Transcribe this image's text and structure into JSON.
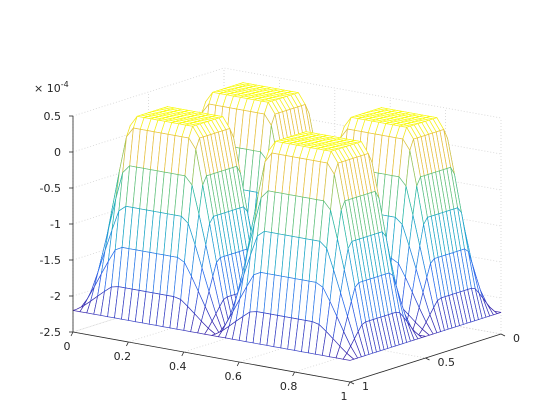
{
  "chart_data": {
    "type": "surface",
    "title": "",
    "xlabel": "",
    "ylabel": "",
    "zlabel": "",
    "xlim": [
      0,
      1
    ],
    "ylim": [
      0,
      1
    ],
    "zlim": [
      -2.5,
      0.5
    ],
    "z_exponent_label": "× 10",
    "z_exponent_power": "-4",
    "x_ticks": [
      {
        "value": 0,
        "label": "0"
      },
      {
        "value": 0.2,
        "label": "0.2"
      },
      {
        "value": 0.4,
        "label": "0.4"
      },
      {
        "value": 0.6,
        "label": "0.6"
      },
      {
        "value": 0.8,
        "label": "0.8"
      },
      {
        "value": 1,
        "label": "1"
      }
    ],
    "y_ticks": [
      {
        "value": 0,
        "label": "0"
      },
      {
        "value": 0.5,
        "label": "0.5"
      },
      {
        "value": 1,
        "label": "1"
      }
    ],
    "z_ticks": [
      {
        "value": 0.5,
        "label": "0.5"
      },
      {
        "value": 0,
        "label": "0"
      },
      {
        "value": -0.5,
        "label": "-0.5"
      },
      {
        "value": -1,
        "label": "-1"
      },
      {
        "value": -1.5,
        "label": "-1.5"
      },
      {
        "value": -2,
        "label": "-2"
      },
      {
        "value": -2.5,
        "label": "-2.5"
      }
    ],
    "grid": true,
    "colormap": "parula",
    "mesh": "wireframe",
    "surface_description": {
      "plateau_value": 0.5,
      "min_value": -2.2,
      "plateau_regions": "four corner quadrants",
      "valleys": "along x=0.5 and y=0.5 lines and at domain edges"
    },
    "colors": {
      "low": "#3d26a8",
      "mid": "#1fb5b0",
      "high": "#f9fb0e"
    }
  }
}
